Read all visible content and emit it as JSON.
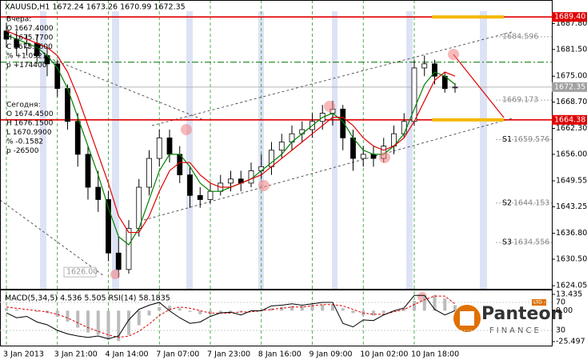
{
  "chart_data": {
    "type": "candlestick",
    "title": "XAUUSD,H1  1672.24 1673.26 1670.99 1672.35",
    "categories": [
      "3 Jan 2013",
      null,
      null,
      null,
      null,
      "3 Jan 21:00",
      null,
      null,
      null,
      null,
      "4 Jan 14:00",
      null,
      null,
      null,
      null,
      "7 Jan 07:00",
      null,
      null,
      null,
      null,
      "7 Jan 23:00",
      null,
      null,
      null,
      null,
      "8 Jan 16:00",
      null,
      null,
      null,
      null,
      "9 Jan 09:00",
      null,
      null,
      null,
      null,
      "10 Jan 02:00",
      null,
      null,
      null,
      null,
      "10 Jan 18:00",
      null,
      null,
      null,
      null
    ],
    "open": [
      1686,
      1684,
      1682,
      1683,
      1680,
      1678,
      1672,
      1664,
      1656,
      1648,
      1645,
      1632,
      1628,
      1638,
      1648,
      1655,
      1660,
      1656,
      1651,
      1646,
      1645,
      1647,
      1649,
      1650,
      1649,
      1652,
      1653,
      1657,
      1659,
      1661,
      1662,
      1664,
      1666,
      1667,
      1660,
      1655,
      1656,
      1655,
      1658,
      1661,
      1664,
      1677,
      1678,
      1675,
      1672.24
    ],
    "high": [
      1688,
      1686,
      1685,
      1685,
      1682,
      1679,
      1673,
      1666,
      1658,
      1652,
      1647,
      1636,
      1640,
      1650,
      1657,
      1662,
      1662,
      1658,
      1653,
      1648,
      1649,
      1651,
      1652,
      1652,
      1654,
      1656,
      1659,
      1661,
      1663,
      1664,
      1666,
      1668,
      1669,
      1668,
      1662,
      1658,
      1658,
      1660,
      1663,
      1666,
      1679,
      1680,
      1679,
      1676,
      1673.26
    ],
    "low": [
      1682,
      1680,
      1680,
      1678,
      1675,
      1670,
      1662,
      1653,
      1645,
      1642,
      1630,
      1626,
      1627,
      1636,
      1646,
      1653,
      1654,
      1649,
      1643,
      1643,
      1644,
      1646,
      1647,
      1647,
      1648,
      1650,
      1651,
      1655,
      1657,
      1659,
      1660,
      1662,
      1663,
      1657,
      1652,
      1653,
      1653,
      1654,
      1656,
      1660,
      1663,
      1675,
      1673,
      1671,
      1670.99
    ],
    "close": [
      1684,
      1682,
      1683,
      1680,
      1678,
      1672,
      1664,
      1656,
      1648,
      1645,
      1632,
      1628,
      1638,
      1648,
      1655,
      1660,
      1656,
      1651,
      1646,
      1645,
      1647,
      1649,
      1650,
      1649,
      1652,
      1653,
      1657,
      1659,
      1661,
      1662,
      1664,
      1666,
      1667,
      1660,
      1655,
      1656,
      1655,
      1658,
      1661,
      1664,
      1677,
      1678,
      1675,
      1672,
      1672.35
    ],
    "series": [
      {
        "color": "#008000",
        "values": [
          1685,
          1684,
          1683,
          1682,
          1680,
          1677,
          1672,
          1665,
          1658,
          1651,
          1643,
          1636,
          1634,
          1638,
          1645,
          1652,
          1656,
          1656,
          1653,
          1649,
          1647,
          1647,
          1648,
          1649,
          1650,
          1652,
          1654,
          1656,
          1659,
          1661,
          1663,
          1665,
          1666,
          1664,
          1660,
          1657,
          1656,
          1656,
          1658,
          1661,
          1667,
          1673,
          1676,
          1675,
          1673
        ]
      },
      {
        "color": "#e00000",
        "values": [
          1686,
          1685,
          1684,
          1683,
          1682,
          1680,
          1676,
          1670,
          1663,
          1656,
          1649,
          1641,
          1637,
          1637,
          1641,
          1647,
          1652,
          1654,
          1654,
          1651,
          1649,
          1648,
          1648,
          1649,
          1650,
          1651,
          1653,
          1655,
          1657,
          1659,
          1661,
          1663,
          1665,
          1665,
          1663,
          1660,
          1658,
          1657,
          1658,
          1660,
          1664,
          1669,
          1674,
          1676,
          1675
        ]
      }
    ],
    "ylim": [
      1623.3,
      1690.8
    ],
    "yticks": [
      {
        "value": 1687.8,
        "label": "1687.80"
      },
      {
        "value": 1681.5,
        "label": "1681.50"
      },
      {
        "value": 1675,
        "label": "1675.00"
      },
      {
        "value": 1668.7,
        "label": "1668.70"
      },
      {
        "value": 1662.3,
        "label": "1662.30"
      },
      {
        "value": 1656,
        "label": "1656.00"
      },
      1649.55,
      1643.25,
      {
        "value": 1636.8,
        "label": "1636.80"
      },
      {
        "value": 1630.5,
        "label": "1630.50"
      },
      1624.05
    ],
    "price_lines": [
      {
        "value": 1689.4,
        "label": "1689.40",
        "color": "#e00000"
      },
      {
        "value": 1664.38,
        "color": "#e00000"
      },
      {
        "value": 1672.35,
        "color": "#a0a0a0"
      }
    ],
    "green_lines": [
      1678.4
    ],
    "levels": [
      {
        "value": 1684.596
      },
      {
        "value": 1669.173
      },
      {
        "name": "S1",
        "value": 1659.576
      },
      {
        "name": "S2",
        "value": 1644.153
      },
      {
        "name": "S3",
        "value": 1634.556
      }
    ],
    "low_mark": {
      "value": 1626,
      "label": "1626.00"
    },
    "sub": {
      "title": "MACD(5,34,5) 4.536 5.505  RSI(14) 58.1835",
      "macd": [
        2,
        1,
        0,
        -1,
        -2,
        -5,
        -9,
        -14,
        -18,
        -20,
        -24,
        -25,
        -20,
        -12,
        -4,
        3,
        4,
        2,
        -1,
        -3,
        -3,
        -2,
        -1,
        -1,
        0,
        1,
        2,
        3,
        4,
        4,
        5,
        5,
        5,
        2,
        -2,
        -4,
        -4,
        -2,
        0,
        2,
        8,
        12,
        13,
        10,
        4.536
      ],
      "signal": [
        3,
        2,
        1,
        0,
        -1,
        -3,
        -6,
        -10,
        -14,
        -17,
        -20,
        -22,
        -21,
        -17,
        -11,
        -4,
        1,
        3,
        2,
        0,
        -2,
        -2,
        -2,
        -1,
        -1,
        0,
        1,
        2,
        3,
        3,
        4,
        5,
        5,
        4,
        1,
        -2,
        -3,
        -3,
        -1,
        1,
        5,
        9,
        12,
        12,
        5.505
      ],
      "rsi": [
        55,
        48,
        50,
        42,
        38,
        30,
        25,
        22,
        20,
        22,
        18,
        22,
        45,
        60,
        66,
        70,
        58,
        48,
        40,
        42,
        50,
        55,
        56,
        52,
        58,
        58,
        65,
        66,
        68,
        66,
        68,
        70,
        70,
        40,
        35,
        45,
        44,
        52,
        58,
        62,
        80,
        80,
        60,
        52,
        58.1835
      ],
      "ylim": [
        -28.8,
        16.7
      ],
      "yticks": [
        13.435,
        {
          "value": 0,
          "label": "0.00"
        },
        -25.497
      ],
      "rsi_lim": [
        8.3,
        87.1
      ],
      "rsi_ticks": [
        70,
        30
      ]
    }
  },
  "info": {
    "yesterday": [
      "Вчера:",
      "O 1667.4000",
      "H 1675.7700",
      "C 1675.1600",
      "% +1.0921",
      "p +174400"
    ],
    "today": [
      "Сегодня:",
      "O 1674.4500",
      "H 1676.1500",
      "L 1670.9900",
      "% -0.1582",
      "p -26500"
    ]
  },
  "logo": {
    "name": "Panteon",
    "tagline": "FINANCE",
    "badge": "LTD"
  }
}
